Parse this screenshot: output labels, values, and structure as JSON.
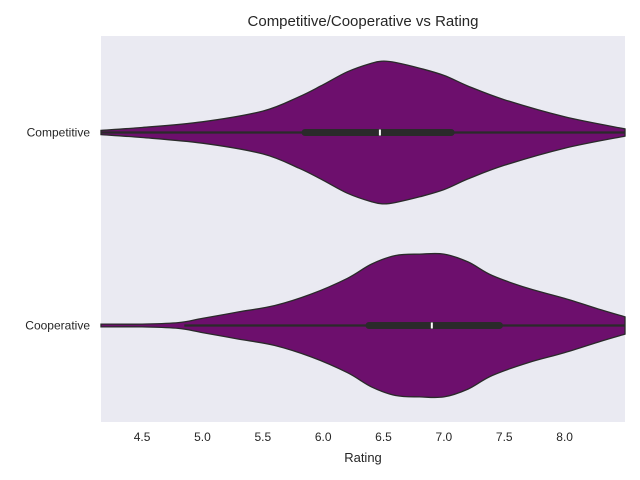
{
  "chart_data": {
    "type": "violin",
    "orientation": "horizontal",
    "title": "Competitive/Cooperative vs Rating",
    "xlabel": "Rating",
    "ylabel": "",
    "xlim": [
      4.16,
      8.5
    ],
    "xticks": [
      4.5,
      5.0,
      5.5,
      6.0,
      6.5,
      7.0,
      7.5,
      8.0
    ],
    "categories": [
      "Competitive",
      "Cooperative"
    ],
    "grid": false,
    "background": "#eaeaf2",
    "colors": {
      "violin_fill": "#6d0f6d",
      "violin_edge": "#2a2a2a",
      "box": "#2a2a2a",
      "median": "#ffffff"
    },
    "series": [
      {
        "name": "Competitive",
        "stats": {
          "whisker_low": 4.16,
          "q1": 5.85,
          "median": 6.47,
          "q3": 7.06,
          "whisker_high": 8.5
        },
        "density": {
          "x": [
            4.16,
            4.5,
            5.0,
            5.5,
            5.8,
            6.0,
            6.2,
            6.4,
            6.5,
            6.6,
            6.8,
            7.0,
            7.2,
            7.5,
            8.0,
            8.5
          ],
          "width": [
            0.03,
            0.07,
            0.15,
            0.3,
            0.5,
            0.67,
            0.85,
            0.97,
            1.0,
            0.98,
            0.9,
            0.8,
            0.65,
            0.46,
            0.22,
            0.05
          ]
        }
      },
      {
        "name": "Cooperative",
        "stats": {
          "whisker_low": 4.85,
          "q1": 6.38,
          "median": 6.9,
          "q3": 7.46,
          "whisker_high": 8.5
        },
        "density": {
          "x": [
            4.16,
            4.5,
            4.8,
            5.0,
            5.3,
            5.6,
            5.9,
            6.2,
            6.4,
            6.6,
            6.8,
            7.0,
            7.2,
            7.4,
            7.7,
            8.0,
            8.3,
            8.5
          ],
          "width": [
            0.02,
            0.02,
            0.04,
            0.1,
            0.19,
            0.28,
            0.44,
            0.66,
            0.86,
            0.98,
            1.0,
            1.0,
            0.89,
            0.7,
            0.52,
            0.38,
            0.22,
            0.12
          ]
        }
      }
    ]
  }
}
